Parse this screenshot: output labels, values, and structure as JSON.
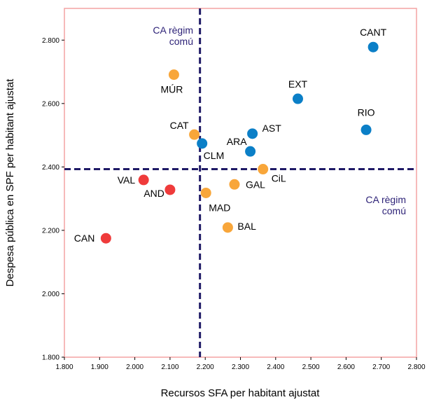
{
  "chart_data": {
    "type": "scatter",
    "title": "",
    "xlabel": "Recursos SFA per habitant ajustat",
    "ylabel": "Despesa pública en SPF per habitant ajustat",
    "xlim": [
      1800,
      2800
    ],
    "ylim": [
      1800,
      2900
    ],
    "x_ticks": [
      1800,
      1900,
      2000,
      2100,
      2200,
      2300,
      2400,
      2500,
      2600,
      2700,
      2800
    ],
    "x_tick_labels": [
      "1.800",
      "1.900",
      "2.000",
      "2.100",
      "2.200",
      "2.300",
      "2.400",
      "2.500",
      "2.600",
      "2.700",
      "2.800"
    ],
    "y_ticks": [
      1800,
      2000,
      2200,
      2400,
      2600,
      2800
    ],
    "y_tick_labels": [
      "1.800",
      "2.000",
      "2.200",
      "2.400",
      "2.600",
      "2.800"
    ],
    "grid": false,
    "colors": {
      "frame": "#f4a3a3",
      "blue": "#0b7fc7",
      "orange": "#f8a63a",
      "red": "#ef3b3b",
      "reference_line": "#1f1a66",
      "note_text": "#2e2378"
    },
    "reference_lines": {
      "x": 2185,
      "y": 2393
    },
    "points": [
      {
        "label": "CANT",
        "x": 2677,
        "y": 2778,
        "color": "blue"
      },
      {
        "label": "EXT",
        "x": 2463,
        "y": 2615,
        "color": "blue"
      },
      {
        "label": "RIO",
        "x": 2657,
        "y": 2517,
        "color": "blue"
      },
      {
        "label": "AST",
        "x": 2334,
        "y": 2505,
        "color": "blue"
      },
      {
        "label": "ARA",
        "x": 2328,
        "y": 2449,
        "color": "blue"
      },
      {
        "label": "CLM",
        "x": 2191,
        "y": 2474,
        "color": "blue"
      },
      {
        "label": "MÚR",
        "x": 2111,
        "y": 2691,
        "color": "orange"
      },
      {
        "label": "CAT",
        "x": 2169,
        "y": 2502,
        "color": "orange"
      },
      {
        "label": "CiL",
        "x": 2364,
        "y": 2393,
        "color": "orange"
      },
      {
        "label": "GAL",
        "x": 2283,
        "y": 2345,
        "color": "orange"
      },
      {
        "label": "MAD",
        "x": 2202,
        "y": 2318,
        "color": "orange"
      },
      {
        "label": "BAL",
        "x": 2264,
        "y": 2209,
        "color": "orange"
      },
      {
        "label": "VAL",
        "x": 2025,
        "y": 2359,
        "color": "red"
      },
      {
        "label": "AND",
        "x": 2100,
        "y": 2328,
        "color": "red"
      },
      {
        "label": "CAN",
        "x": 1918,
        "y": 2175,
        "color": "red"
      }
    ],
    "annotations": [
      {
        "id": "ca-top",
        "lines": [
          "CA règim",
          "comú"
        ]
      },
      {
        "id": "ca-right",
        "lines": [
          "CA règim",
          "comú"
        ]
      }
    ]
  }
}
